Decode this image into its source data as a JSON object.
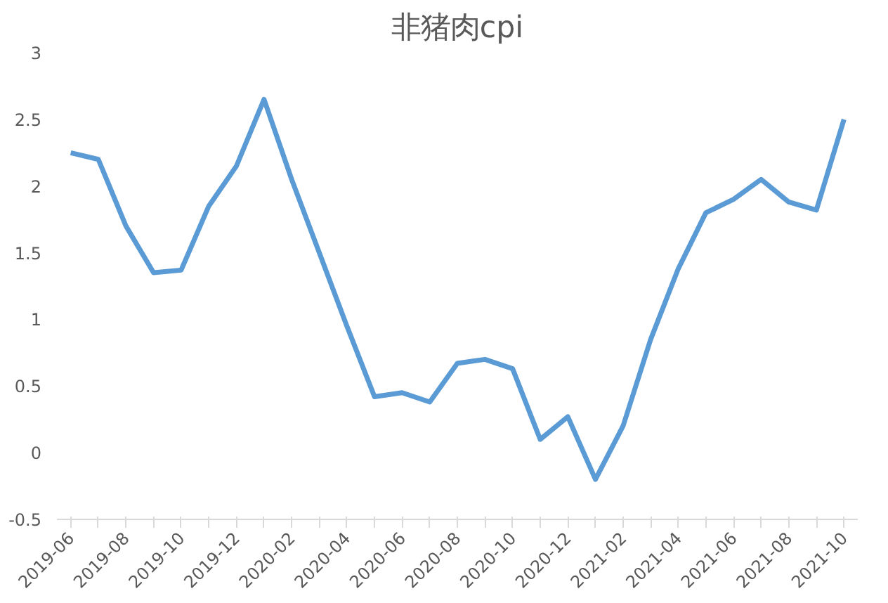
{
  "chart_data": {
    "type": "line",
    "title": "非猪肉cpi",
    "categories": [
      "2019-06",
      null,
      "2019-08",
      null,
      "2019-10",
      null,
      "2019-12",
      null,
      "2020-02",
      null,
      "2020-04",
      null,
      "2020-06",
      null,
      "2020-08",
      null,
      "2020-10",
      null,
      "2020-12",
      null,
      "2021-02",
      null,
      "2021-04",
      null,
      "2021-06",
      null,
      "2021-08",
      null,
      "2021-10"
    ],
    "series": [
      {
        "color": "#5b9bd5",
        "values": [
          2.25,
          2.2,
          1.7,
          1.35,
          1.37,
          1.85,
          2.15,
          2.65,
          2.05,
          1.5,
          0.95,
          0.42,
          0.45,
          0.38,
          0.67,
          0.7,
          0.63,
          0.1,
          0.27,
          -0.2,
          0.2,
          0.85,
          1.38,
          1.8,
          1.9,
          2.05,
          1.88,
          1.82,
          2.5
        ]
      }
    ],
    "ylim": [
      -0.5,
      3
    ],
    "yticks": [
      -0.5,
      0,
      0.5,
      1,
      1.5,
      2,
      2.5,
      3
    ],
    "grid": false,
    "marker": "none",
    "line_style": "solid"
  }
}
